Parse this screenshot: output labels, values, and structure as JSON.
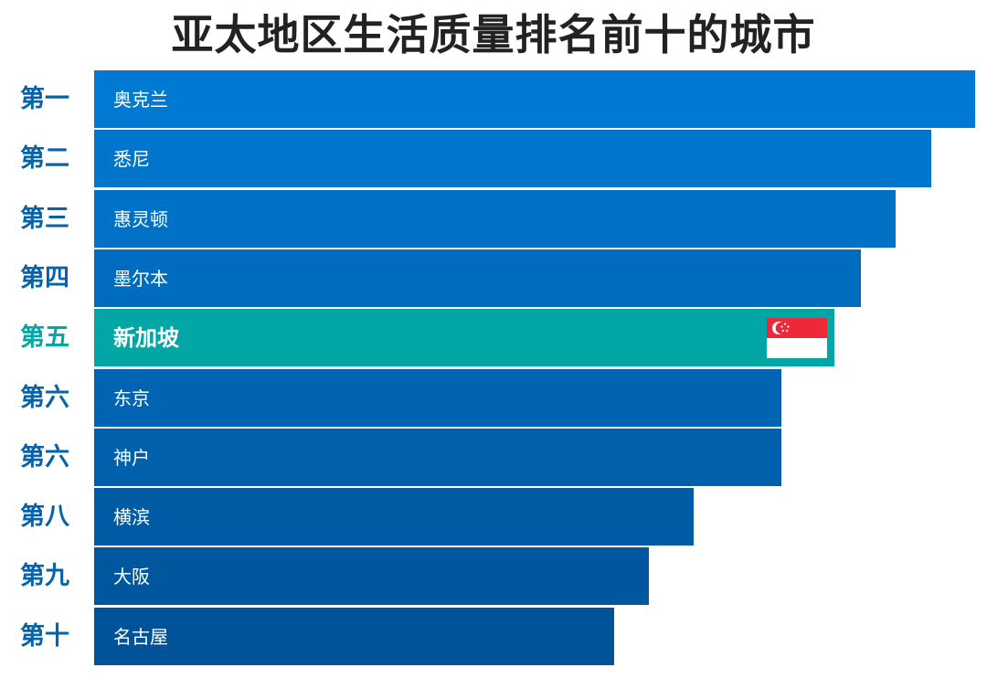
{
  "chart_data": {
    "type": "bar",
    "orientation": "horizontal",
    "title": "亚太地区生活质量排名前十的城市",
    "ranks": [
      "第一",
      "第二",
      "第三",
      "第四",
      "第五",
      "第六",
      "第六",
      "第八",
      "第九",
      "第十"
    ],
    "categories": [
      "奥克兰",
      "悉尼",
      "惠灵顿",
      "墨尔本",
      "新加坡",
      "东京",
      "神户",
      "横滨",
      "大阪",
      "名古屋"
    ],
    "values": [
      100,
      95,
      91,
      87,
      84,
      78,
      78,
      68,
      63,
      59
    ],
    "value_scale": "relative bar length (unlabeled); longest bar = 100",
    "xlim": [
      0,
      100
    ],
    "highlight_index": 4,
    "highlight_icon": "singapore-flag-icon",
    "axes_visible": false,
    "grid": false,
    "legend": "none",
    "colors": {
      "bar_gradient_top": "#0079d2",
      "bar_gradient_bottom": "#005398",
      "highlight_bar": "#01a6a5",
      "rank_label": "#0663aa",
      "highlight_rank_label": "#01a6a5",
      "title": "#222222",
      "bar_text": "#ffffff",
      "flag_red": "#ed2939",
      "flag_white": "#ffffff"
    }
  }
}
